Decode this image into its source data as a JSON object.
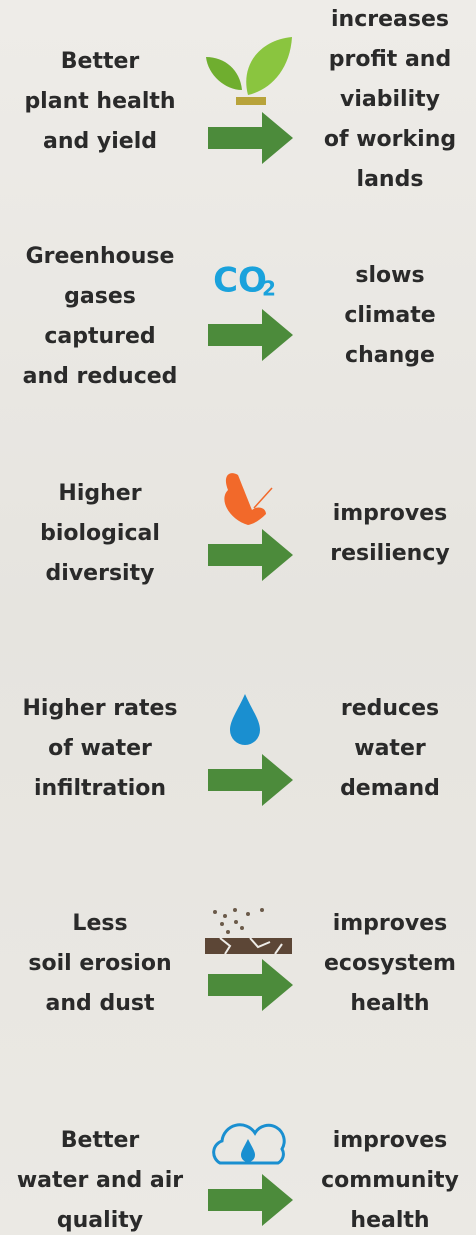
{
  "rows": [
    {
      "left": [
        "Better",
        "plant health",
        "and yield"
      ],
      "right": [
        "increases",
        "profit and",
        "viability",
        "of working",
        "lands"
      ]
    },
    {
      "left": [
        "Greenhouse",
        "gases",
        "captured",
        "and reduced"
      ],
      "right": [
        "slows",
        "climate",
        "change"
      ],
      "icon_text": [
        "CO",
        "2"
      ]
    },
    {
      "left": [
        "Higher",
        "biological",
        "diversity"
      ],
      "right": [
        "improves",
        "resiliency"
      ]
    },
    {
      "left": [
        "Higher rates",
        "of water",
        "infiltration"
      ],
      "right": [
        "reduces",
        "water",
        "demand"
      ]
    },
    {
      "left": [
        "Less",
        "soil erosion",
        "and dust"
      ],
      "right": [
        "improves",
        "ecosystem",
        "health"
      ]
    },
    {
      "left": [
        "Better",
        "water and air",
        "quality"
      ],
      "right": [
        "improves",
        "community",
        "health"
      ]
    }
  ]
}
